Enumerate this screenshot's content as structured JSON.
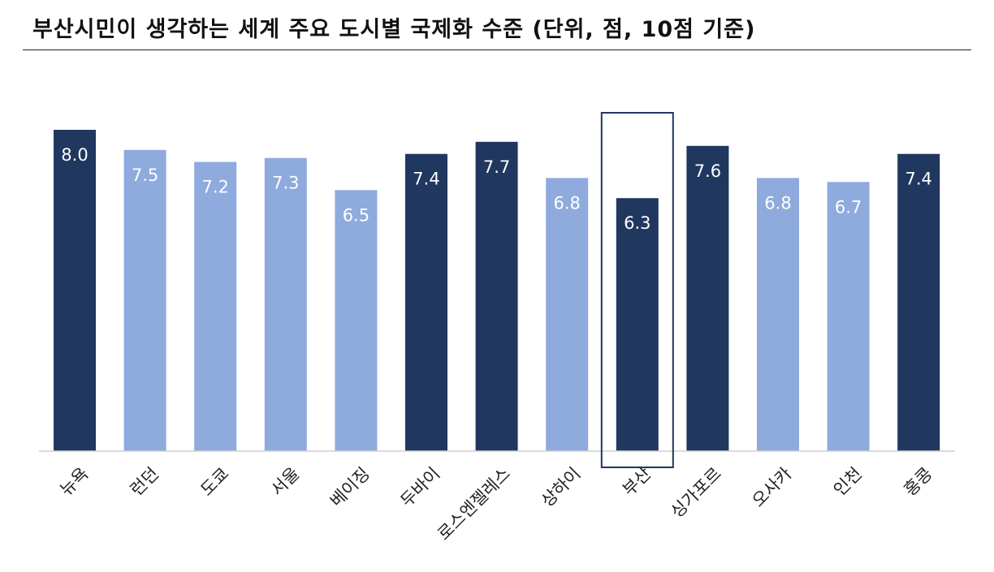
{
  "title": "부산시민이 생각하는 세계 주요 도시별 국제화 수준 (단위, 점, 10점 기준)",
  "chart_data": {
    "type": "bar",
    "categories": [
      "뉴욕",
      "런던",
      "도쿄",
      "서울",
      "베이징",
      "두바이",
      "로스엔젤레스",
      "상하이",
      "부산",
      "싱가포르",
      "오사카",
      "인천",
      "홍콩"
    ],
    "values": [
      8.0,
      7.5,
      7.2,
      7.3,
      6.5,
      7.4,
      7.7,
      6.8,
      6.3,
      7.6,
      6.8,
      6.7,
      7.4
    ],
    "value_labels": [
      "8.0",
      "7.5",
      "7.2",
      "7.3",
      "6.5",
      "7.4",
      "7.7",
      "6.8",
      "6.3",
      "7.6",
      "6.8",
      "6.7",
      "7.4"
    ],
    "highlight": [
      true,
      false,
      false,
      false,
      false,
      true,
      true,
      false,
      true,
      true,
      false,
      false,
      true
    ],
    "highlighted_category": "부산",
    "ylim": [
      0,
      8
    ],
    "grid": false,
    "legend": "none",
    "colors": {
      "dark": "#20375F",
      "light": "#8FAADC",
      "axis": "#D0D0D0",
      "outline": "#20375F"
    }
  }
}
